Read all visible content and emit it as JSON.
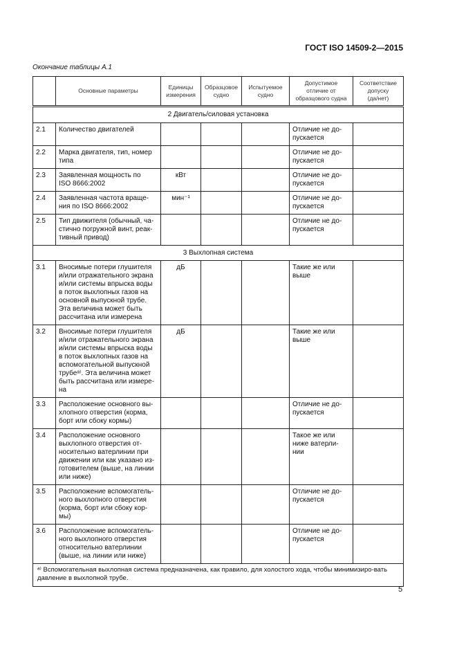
{
  "header": {
    "standard": "ГОСТ ISO 14509-2—2015"
  },
  "caption": "Окончание таблицы А.1",
  "columns": [
    "",
    "Основные параметры",
    "Единицы\nизмерения",
    "Образцовое\nсудно",
    "Испытуемое\nсудно",
    "Допустимое\nотличие от\nобразцового судна",
    "Соответствие\nдопуску\n(да/нет)"
  ],
  "sections": [
    {
      "title": "2  Двигатель/силовая установка",
      "rows": [
        {
          "no": "2.1",
          "param": "Количество двигателей",
          "unit": "",
          "tol": "Отличие не до-\nпускается",
          "h": 31
        },
        {
          "no": "2.2",
          "param": "Марка двигателя, тип, номер\nтипа",
          "unit": "",
          "tol": "Отличие не до-\nпускается",
          "h": 31
        },
        {
          "no": "2.3",
          "param": "Заявленная мощность по\nISO 8666:2002",
          "unit": "кВт",
          "tol": "Отличие не до-\nпускается",
          "h": 31
        },
        {
          "no": "2.4",
          "param": "Заявленная частота враще-\nния по ISO 8666:2002",
          "unit": "мин⁻¹",
          "tol": "Отличие не до-\nпускается",
          "h": 32
        },
        {
          "no": "2.5",
          "param": "Тип движителя (обычный, ча-\nстично погружной винт, реак-\nтивный привод)",
          "unit": "",
          "tol": "Отличие не до-\nпускается",
          "h": 43
        }
      ]
    },
    {
      "title": "3  Выхлопная система",
      "rows": [
        {
          "no": "3.1",
          "param": "Вносимые потери глушителя\nи/или отражательного экрана\nи/или системы впрыска воды\nв поток выхлопных газов на\nосновной выпускной трубе.\nЭта величина может быть\nрассчитана или измерена",
          "unit": "дБ",
          "tol": "Такие же или\nвыше",
          "h": 81
        },
        {
          "no": "3.2",
          "param": "Вносимые потери глушителя\nи/или отражательного экрана\nи/или системы впрыска воды\nв поток выхлопных газов на\nвспомогательной выпускной\nтрубеᵃ⁾. Эта величина может\nбыть рассчитана или измере-\nна",
          "unit": "дБ",
          "tol": "Такие же или\nвыше",
          "h": 105
        },
        {
          "no": "3.3",
          "param": "Расположение основного вы-\nхлопного отверстия (корма,\nборт или сбоку кормы)",
          "unit": "",
          "tol": "Отличие не до-\nпускается",
          "h": 42
        },
        {
          "no": "3.4",
          "param": "Расположение основного\nвыхлопного отверстия от-\nносительно ватерлинии при\nдвижении или как указано из-\nготовителем (выше, на линии\nили ниже)",
          "unit": "",
          "tol": "Такое же или\nниже ватерли-\nнии",
          "h": 80
        },
        {
          "no": "3.5",
          "param": "Расположение вспомогатель-\nного выхлопного отверстия\n(корма, борт или сбоку кор-\nмы)",
          "unit": "",
          "tol": "Отличие не до-\nпускается",
          "h": 54
        },
        {
          "no": "3.6",
          "param": "Расположение вспомогатель-\nного выхлопного отверстия\nотносительно ватерлинии\n(выше, на линии или ниже)",
          "unit": "",
          "tol": "Отличие не до-\nпускается",
          "h": 53
        }
      ]
    }
  ],
  "footnote": "ᵃ⁾  Вспомогательная выхлопная система предназначена, как правило, для холостого хода, чтобы минимизиро-вать давление в выхлопной трубе.",
  "page_number": "5"
}
